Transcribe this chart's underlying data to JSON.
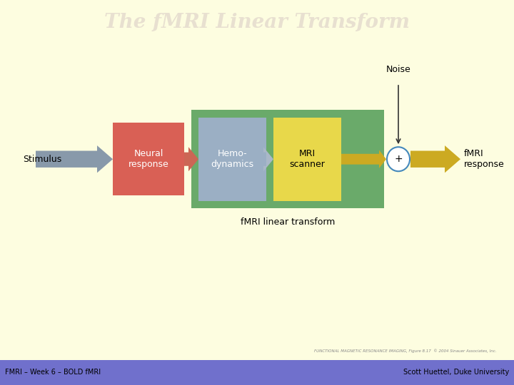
{
  "title": "The fMRI Linear Transform",
  "title_color": "#e8e0d0",
  "bg_outer": "#fdfde0",
  "bg_inner": "#ffffff",
  "footer_bg": "#7070cc",
  "footer_left": "FMRI – Week 6 – BOLD fMRI",
  "footer_right": "Scott Huettel, Duke University",
  "caption": "fMRI linear transform",
  "figure_ref": "FUNCTIONAL MAGNETIC RESONANCE IMAGING, Figure 8.17  © 2004 Sinauer Associates, Inc.",
  "stimulus_label": "Stimulus",
  "fmri_response_label": "fMRI\nresponse",
  "noise_label": "Noise",
  "neural_label": "Neural\nresponse",
  "hemo_label": "Hemo-\ndynamics",
  "mri_label": "MRI\nscanner",
  "plus_label": "+",
  "neural_color": "#d96055",
  "hemo_color": "#9bafc4",
  "mri_color": "#e8d84a",
  "green_bg_color": "#6aaa6a",
  "stimulus_arrow_color": "#8899aa",
  "neural_arrow_color": "#cc6655",
  "hemo_arrow_color": "#aab8c8",
  "output_arrow_color": "#ccaa22",
  "circle_color": "#4488bb",
  "noise_arrow_color": "#333333"
}
